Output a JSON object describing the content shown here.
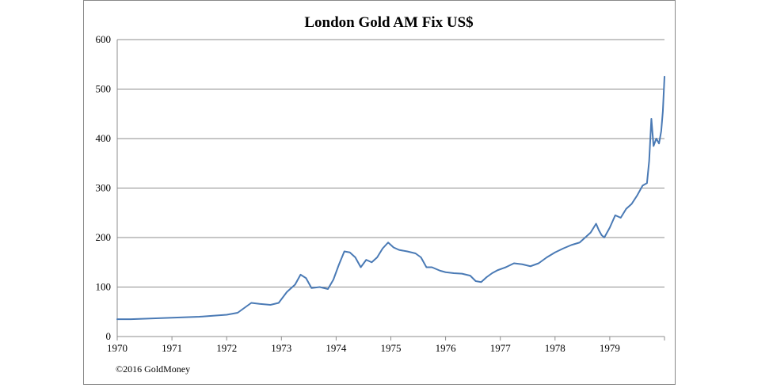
{
  "chart_data": {
    "type": "line",
    "title": "London Gold AM Fix US$",
    "xlabel": "",
    "ylabel": "",
    "xlim": [
      1970,
      1980
    ],
    "ylim": [
      0,
      600
    ],
    "x_ticks": [
      "1970",
      "1971",
      "1972",
      "1973",
      "1974",
      "1975",
      "1976",
      "1977",
      "1978",
      "1979"
    ],
    "y_ticks": [
      "0",
      "100",
      "200",
      "300",
      "400",
      "500",
      "600"
    ],
    "grid": "horizontal",
    "legend": "none",
    "series": [
      {
        "color": "#4a7ab5",
        "x": [
          1970.0,
          1970.25,
          1970.5,
          1970.75,
          1971.0,
          1971.25,
          1971.5,
          1971.75,
          1972.0,
          1972.2,
          1972.35,
          1972.45,
          1972.6,
          1972.8,
          1972.95,
          1973.1,
          1973.25,
          1973.35,
          1973.45,
          1973.55,
          1973.7,
          1973.85,
          1973.95,
          1974.05,
          1974.15,
          1974.25,
          1974.35,
          1974.45,
          1974.55,
          1974.65,
          1974.75,
          1974.85,
          1974.95,
          1975.05,
          1975.15,
          1975.3,
          1975.45,
          1975.55,
          1975.65,
          1975.75,
          1975.9,
          1976.0,
          1976.15,
          1976.3,
          1976.45,
          1976.55,
          1976.65,
          1976.75,
          1976.85,
          1976.95,
          1977.1,
          1977.25,
          1977.4,
          1977.55,
          1977.7,
          1977.85,
          1978.0,
          1978.15,
          1978.3,
          1978.45,
          1978.55,
          1978.65,
          1978.75,
          1978.8,
          1978.85,
          1978.9,
          1979.0,
          1979.1,
          1979.2,
          1979.3,
          1979.4,
          1979.5,
          1979.6,
          1979.68,
          1979.72,
          1979.76,
          1979.8,
          1979.85,
          1979.9,
          1979.94,
          1979.97,
          1980.0
        ],
        "values": [
          35,
          35,
          36,
          37,
          38,
          39,
          40,
          42,
          44,
          48,
          60,
          68,
          66,
          64,
          68,
          90,
          105,
          125,
          118,
          98,
          100,
          96,
          115,
          145,
          172,
          170,
          160,
          140,
          155,
          150,
          160,
          178,
          190,
          180,
          175,
          172,
          168,
          160,
          140,
          140,
          133,
          130,
          128,
          127,
          123,
          112,
          110,
          120,
          128,
          134,
          140,
          148,
          146,
          142,
          148,
          160,
          170,
          178,
          185,
          190,
          200,
          210,
          228,
          215,
          205,
          200,
          220,
          245,
          240,
          258,
          268,
          285,
          305,
          310,
          355,
          440,
          385,
          400,
          390,
          415,
          455,
          525
        ]
      }
    ]
  },
  "copyright": "©2016 GoldMoney"
}
